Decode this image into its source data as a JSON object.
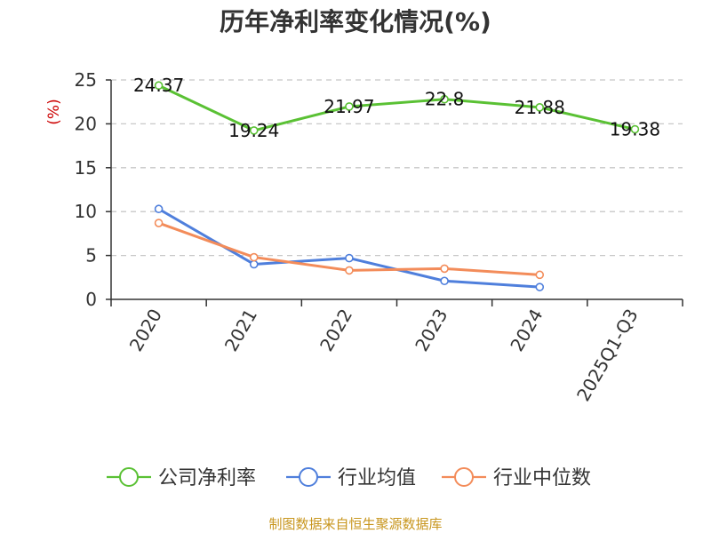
{
  "chart_data": {
    "type": "line",
    "title": "历年净利率变化情况(%)",
    "ylabel": "(%)",
    "xlabel": "",
    "categories": [
      "2020",
      "2021",
      "2022",
      "2023",
      "2024",
      "2025Q1-Q3"
    ],
    "ylim": [
      0,
      25
    ],
    "yticks": [
      0,
      5,
      10,
      15,
      20,
      25
    ],
    "grid": true,
    "legend_position": "bottom",
    "series": [
      {
        "name": "公司净利率",
        "color": "#5ac134",
        "values": [
          24.37,
          19.24,
          21.97,
          22.8,
          21.88,
          19.38
        ],
        "labels": [
          "24.37",
          "19.24",
          "21.97",
          "22.8",
          "21.88",
          "19.38"
        ],
        "show_labels": true
      },
      {
        "name": "行业均值",
        "color": "#4f7fdc",
        "values": [
          10.3,
          4.0,
          4.7,
          2.1,
          1.4,
          null
        ],
        "show_labels": false
      },
      {
        "name": "行业中位数",
        "color": "#f38c5a",
        "values": [
          8.7,
          4.8,
          3.3,
          3.5,
          2.8,
          null
        ],
        "show_labels": false
      }
    ]
  },
  "source_text": "制图数据来自恒生聚源数据库"
}
